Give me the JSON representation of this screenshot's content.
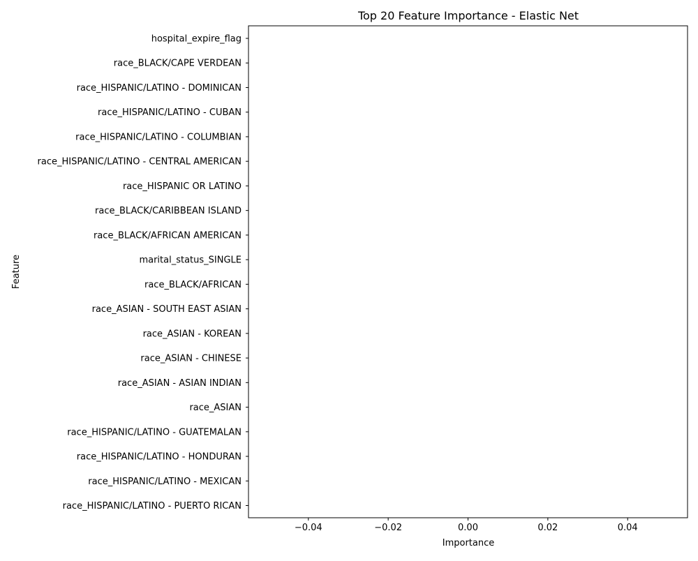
{
  "chart_data": {
    "type": "bar",
    "orientation": "horizontal",
    "title": "Top 20 Feature Importance - Elastic Net",
    "xlabel": "Importance",
    "ylabel": "Feature",
    "xlim": [
      -0.055,
      0.055
    ],
    "xticks": [
      -0.04,
      -0.02,
      0.0,
      0.02,
      0.04
    ],
    "xtick_labels": [
      "−0.04",
      "−0.02",
      "0.00",
      "0.02",
      "0.04"
    ],
    "grid": false,
    "categories": [
      "hospital_expire_flag",
      "race_BLACK/CAPE VERDEAN",
      "race_HISPANIC/LATINO - DOMINICAN",
      "race_HISPANIC/LATINO - CUBAN",
      "race_HISPANIC/LATINO - COLUMBIAN",
      "race_HISPANIC/LATINO - CENTRAL AMERICAN",
      "race_HISPANIC OR LATINO",
      "race_BLACK/CARIBBEAN ISLAND",
      "race_BLACK/AFRICAN AMERICAN",
      "marital_status_SINGLE",
      "race_BLACK/AFRICAN",
      "race_ASIAN - SOUTH EAST ASIAN",
      "race_ASIAN - KOREAN",
      "race_ASIAN - CHINESE",
      "race_ASIAN - ASIAN INDIAN",
      "race_ASIAN",
      "race_HISPANIC/LATINO - GUATEMALAN",
      "race_HISPANIC/LATINO - HONDURAN",
      "race_HISPANIC/LATINO - MEXICAN",
      "race_HISPANIC/LATINO - PUERTO RICAN"
    ],
    "values": [
      0,
      0,
      0,
      0,
      0,
      0,
      0,
      0,
      0,
      0,
      0,
      0,
      0,
      0,
      0,
      0,
      0,
      0,
      0,
      0
    ],
    "bar_color": "#1f77b4"
  }
}
